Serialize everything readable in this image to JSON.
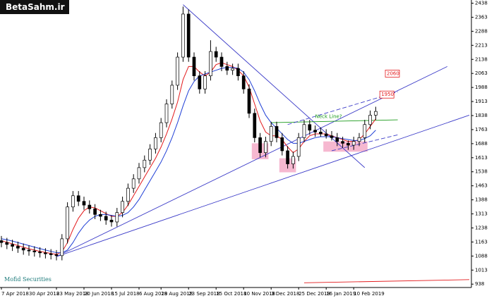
{
  "chart_data": {
    "type": "candlestick",
    "logo": "BetaSahm.ir",
    "source": "Mofid Securities",
    "xlim": [
      0,
      85
    ],
    "ylim": [
      920,
      2455
    ],
    "yticks": [
      2438,
      2363,
      2288,
      2213,
      2138,
      2063,
      1988,
      1913,
      1838,
      1763,
      1688,
      1613,
      1538,
      1463,
      1388,
      1313,
      1238,
      1163,
      1088,
      1013,
      938
    ],
    "xticks": [
      {
        "value": 0,
        "label": "7 Apr 2018"
      },
      {
        "value": 5,
        "label": "30 Apr 2018"
      },
      {
        "value": 10,
        "label": "23 May 2018"
      },
      {
        "value": 15,
        "label": "20 Jun 2018"
      },
      {
        "value": 20,
        "label": "15 Jul 2018"
      },
      {
        "value": 25,
        "label": "6 Aug 2018"
      },
      {
        "value": 29,
        "label": "29 Aug 2018"
      },
      {
        "value": 34,
        "label": "23 Sep 2018"
      },
      {
        "value": 39,
        "label": "15 Oct 2018"
      },
      {
        "value": 44,
        "label": "10 Nov 2018"
      },
      {
        "value": 49,
        "label": "3 Dec 2018"
      },
      {
        "value": 54,
        "label": "25 Dec 2018"
      },
      {
        "value": 59,
        "label": "16 Jan 2019"
      },
      {
        "value": 64,
        "label": "10 Feb 2019"
      }
    ],
    "open": [
      1170,
      1160,
      1150,
      1140,
      1130,
      1120,
      1115,
      1110,
      1105,
      1100,
      1095,
      1090,
      1180,
      1350,
      1410,
      1380,
      1360,
      1340,
      1310,
      1300,
      1280,
      1270,
      1320,
      1380,
      1450,
      1500,
      1560,
      1600,
      1660,
      1720,
      1800,
      1900,
      2000,
      2150,
      2380,
      2150,
      2050,
      1980,
      2050,
      2180,
      2150,
      2100,
      2080,
      2090,
      2050,
      1980,
      1850,
      1720,
      1640,
      1700,
      1780,
      1720,
      1650,
      1580,
      1620,
      1720,
      1790,
      1760,
      1750,
      1740,
      1730,
      1720,
      1700,
      1690,
      1680,
      1700,
      1720,
      1790,
      1840
    ],
    "high": [
      1195,
      1185,
      1175,
      1165,
      1155,
      1145,
      1140,
      1135,
      1130,
      1125,
      1120,
      1205,
      1375,
      1435,
      1435,
      1405,
      1385,
      1365,
      1335,
      1325,
      1305,
      1345,
      1405,
      1475,
      1525,
      1585,
      1625,
      1685,
      1745,
      1825,
      1925,
      2025,
      2175,
      2420,
      2405,
      2175,
      2075,
      2075,
      2240,
      2205,
      2175,
      2125,
      2115,
      2115,
      2075,
      2005,
      1875,
      1745,
      1725,
      1805,
      1805,
      1745,
      1675,
      1645,
      1745,
      1815,
      1815,
      1785,
      1775,
      1765,
      1755,
      1745,
      1725,
      1705,
      1725,
      1745,
      1815,
      1865,
      1885
    ],
    "low": [
      1135,
      1125,
      1115,
      1105,
      1095,
      1090,
      1085,
      1080,
      1075,
      1070,
      1065,
      1065,
      1155,
      1325,
      1355,
      1335,
      1315,
      1285,
      1275,
      1255,
      1245,
      1245,
      1295,
      1355,
      1425,
      1475,
      1535,
      1575,
      1635,
      1695,
      1775,
      1875,
      1975,
      2125,
      2125,
      2025,
      1955,
      1955,
      2025,
      2125,
      2075,
      2055,
      2055,
      2025,
      1955,
      1825,
      1695,
      1615,
      1615,
      1675,
      1695,
      1625,
      1555,
      1555,
      1595,
      1695,
      1735,
      1725,
      1725,
      1715,
      1705,
      1675,
      1665,
      1655,
      1655,
      1675,
      1695,
      1765,
      1815
    ],
    "close": [
      1160,
      1150,
      1140,
      1130,
      1120,
      1115,
      1110,
      1105,
      1100,
      1095,
      1090,
      1180,
      1350,
      1410,
      1380,
      1360,
      1340,
      1310,
      1300,
      1280,
      1270,
      1320,
      1380,
      1450,
      1500,
      1560,
      1600,
      1660,
      1720,
      1800,
      1900,
      2000,
      2150,
      2380,
      2150,
      2050,
      1980,
      2050,
      2180,
      2150,
      2100,
      2080,
      2090,
      2050,
      1980,
      1850,
      1720,
      1640,
      1700,
      1780,
      1720,
      1650,
      1580,
      1620,
      1720,
      1790,
      1760,
      1750,
      1740,
      1730,
      1720,
      1700,
      1690,
      1680,
      1700,
      1720,
      1790,
      1840,
      1860
    ],
    "series": [
      {
        "color": "#e31a1c",
        "values": [
          1170,
          1162,
          1153,
          1144,
          1135,
          1127,
          1120,
          1113,
          1107,
          1102,
          1097,
          1110,
          1160,
          1230,
          1290,
          1330,
          1350,
          1345,
          1330,
          1315,
          1300,
          1300,
          1320,
          1360,
          1410,
          1460,
          1510,
          1560,
          1610,
          1670,
          1740,
          1820,
          1910,
          2030,
          2100,
          2100,
          2070,
          2050,
          2070,
          2110,
          2120,
          2110,
          2100,
          2080,
          2050,
          1990,
          1900,
          1810,
          1750,
          1730,
          1730,
          1710,
          1670,
          1640,
          1660,
          1700,
          1730,
          1740,
          1740,
          1740,
          1730,
          1720,
          1710,
          1700,
          1700,
          1710,
          1740,
          1780,
          1820
        ]
      },
      {
        "color": "#1f3fd6",
        "values": [
          1180,
          1175,
          1168,
          1160,
          1152,
          1144,
          1136,
          1128,
          1120,
          1113,
          1106,
          1105,
          1120,
          1160,
          1210,
          1250,
          1280,
          1300,
          1310,
          1310,
          1305,
          1300,
          1305,
          1320,
          1350,
          1390,
          1440,
          1490,
          1540,
          1590,
          1650,
          1720,
          1800,
          1890,
          1970,
          2020,
          2050,
          2060,
          2070,
          2080,
          2090,
          2095,
          2095,
          2090,
          2070,
          2030,
          1970,
          1900,
          1840,
          1800,
          1770,
          1740,
          1710,
          1690,
          1690,
          1700,
          1710,
          1720,
          1725,
          1725,
          1725,
          1720,
          1715,
          1710,
          1705,
          1705,
          1715,
          1730,
          1760
        ]
      }
    ],
    "trendlines": [
      {
        "color": "#3b3bc8",
        "dashed": false,
        "points": [
          [
            33,
            2430
          ],
          [
            66,
            1560
          ]
        ]
      },
      {
        "color": "#3b3bc8",
        "dashed": false,
        "points": [
          [
            10,
            1085
          ],
          [
            81,
            2100
          ]
        ]
      },
      {
        "color": "#3b3bc8",
        "dashed": false,
        "points": [
          [
            10,
            1085
          ],
          [
            85,
            1840
          ]
        ]
      },
      {
        "color": "#1a9a1a",
        "dashed": false,
        "points": [
          [
            49,
            1800
          ],
          [
            72,
            1815
          ]
        ]
      },
      {
        "color": "#3b3bc8",
        "dashed": true,
        "points": [
          [
            52,
            1790
          ],
          [
            72,
            1965
          ]
        ]
      },
      {
        "color": "#3b3bc8",
        "dashed": true,
        "points": [
          [
            60,
            1650
          ],
          [
            72,
            1735
          ]
        ]
      },
      {
        "color": "#e31a1c",
        "dashed": false,
        "points": [
          [
            55,
            945
          ],
          [
            85,
            962
          ]
        ]
      }
    ],
    "highlights": [
      [
        46,
        48,
        1605,
        1690
      ],
      [
        51,
        53,
        1535,
        1610
      ],
      [
        59,
        66,
        1645,
        1700
      ]
    ],
    "annotations": [
      {
        "text": "Neck Line?",
        "x": 57,
        "y": 1832,
        "color": "#1a9a1a"
      },
      {
        "text": "2060",
        "x": 70,
        "y": 2062,
        "color": "#e31a1c",
        "boxed": true
      },
      {
        "text": "1950",
        "x": 69,
        "y": 1950,
        "color": "#e31a1c",
        "boxed": true
      }
    ]
  }
}
